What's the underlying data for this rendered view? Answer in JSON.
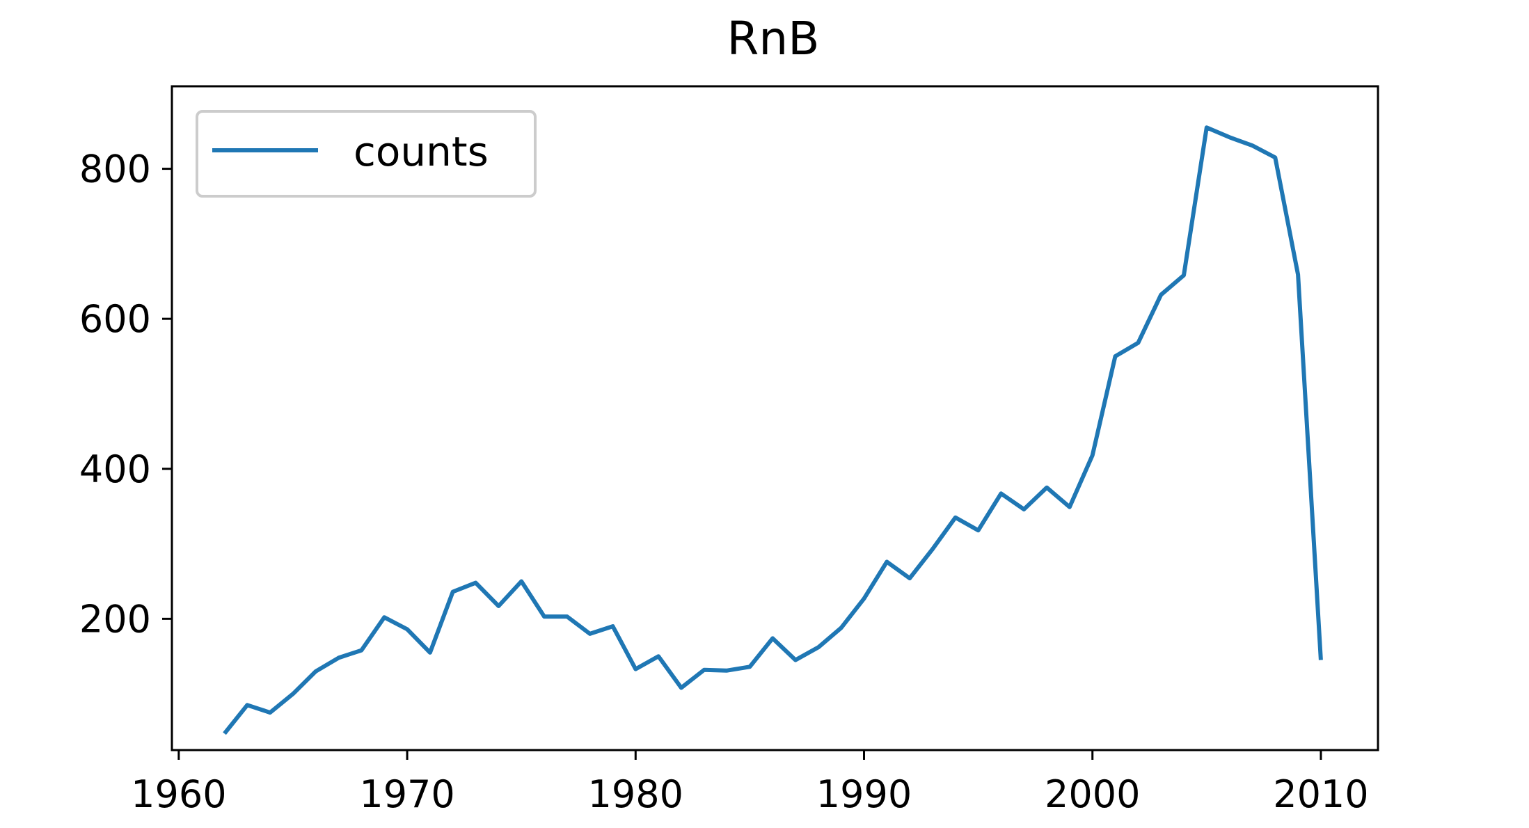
{
  "chart_data": {
    "type": "line",
    "title": "RnB",
    "xlabel": "",
    "ylabel": "",
    "xlim": [
      1959.7,
      2012.5
    ],
    "ylim": [
      25,
      910
    ],
    "x_ticks": [
      1960,
      1970,
      1980,
      1990,
      2000,
      2010
    ],
    "y_ticks": [
      200,
      400,
      600,
      800
    ],
    "grid": false,
    "legend": "top-left",
    "series": [
      {
        "name": "counts",
        "color": "#1f77b4",
        "x": [
          1962,
          1963,
          1964,
          1965,
          1966,
          1967,
          1968,
          1969,
          1970,
          1971,
          1972,
          1973,
          1974,
          1975,
          1976,
          1977,
          1978,
          1979,
          1980,
          1981,
          1982,
          1983,
          1984,
          1985,
          1986,
          1987,
          1988,
          1989,
          1990,
          1991,
          1992,
          1993,
          1994,
          1995,
          1996,
          1997,
          1998,
          1999,
          2000,
          2001,
          2002,
          2003,
          2004,
          2005,
          2006,
          2007,
          2008,
          2009,
          2010
        ],
        "values": [
          47,
          85,
          75,
          100,
          130,
          148,
          158,
          202,
          186,
          155,
          236,
          248,
          217,
          250,
          203,
          203,
          180,
          190,
          133,
          150,
          108,
          132,
          131,
          136,
          174,
          145,
          162,
          188,
          227,
          276,
          254,
          293,
          335,
          318,
          367,
          346,
          375,
          349,
          418,
          550,
          568,
          632,
          658,
          855,
          842,
          831,
          815,
          659,
          145
        ]
      }
    ]
  }
}
